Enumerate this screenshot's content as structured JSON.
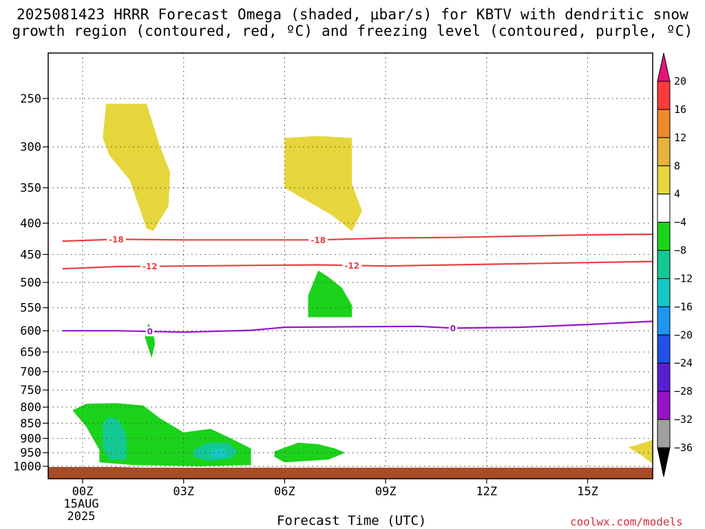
{
  "title_line1": "2025081423 HRRR Forecast Omega (shaded, μbar/s) for KBTV with dendritic snow",
  "title_line2": "growth region (contoured, red, ºC) and freezing level (contoured, purple, ºC)",
  "credit": "coolwx.com/models",
  "chart_data": {
    "type": "heatmap",
    "xlabel": "Forecast Time (UTC)",
    "ylabel": "",
    "x_ticks": [
      {
        "value": 0,
        "label": "00Z",
        "sub": [
          "15AUG",
          "2025"
        ]
      },
      {
        "value": 3,
        "label": "03Z"
      },
      {
        "value": 6,
        "label": "06Z"
      },
      {
        "value": 9,
        "label": "09Z"
      },
      {
        "value": 12,
        "label": "12Z"
      },
      {
        "value": 15,
        "label": "15Z"
      }
    ],
    "xlim": [
      -0.6,
      17
    ],
    "y_ticks": [
      250,
      300,
      350,
      400,
      450,
      500,
      550,
      600,
      650,
      700,
      750,
      800,
      850,
      900,
      950,
      1000
    ],
    "y_scale": "log",
    "ylim": [
      1040,
      208
    ],
    "grid": true,
    "colorbar": {
      "labels": [
        "20",
        "16",
        "12",
        "8",
        "4",
        "−4",
        "−8",
        "−12",
        "−16",
        "−20",
        "−24",
        "−28",
        "−32",
        "−36"
      ],
      "colors": [
        "#ff3a3a",
        "#f08a28",
        "#e6b43a",
        "#e6d63c",
        "#ffffff",
        "#1ad31a",
        "#14c896",
        "#14c8c8",
        "#1e96f0",
        "#2050e6",
        "#5a1ed2",
        "#9614c8",
        "#a0a0a0"
      ],
      "top_arrow_color": "#e6147a",
      "bottom_arrow_color": "#000000"
    },
    "omega_regions": [
      {
        "color": "#e6d63c",
        "points": [
          [
            0.9,
            255
          ],
          [
            1.9,
            255
          ],
          [
            2.3,
            300
          ],
          [
            2.6,
            330
          ],
          [
            2.55,
            375
          ],
          [
            2.1,
            412
          ],
          [
            1.9,
            408
          ],
          [
            1.4,
            340
          ],
          [
            0.8,
            310
          ],
          [
            0.6,
            290
          ],
          [
            0.7,
            255
          ]
        ]
      },
      {
        "color": "#e6d63c",
        "points": [
          [
            6.0,
            290
          ],
          [
            7.0,
            288
          ],
          [
            8.0,
            290
          ],
          [
            8.0,
            345
          ],
          [
            8.3,
            382
          ],
          [
            8.0,
            412
          ],
          [
            7.4,
            388
          ],
          [
            6.0,
            350
          ]
        ]
      },
      {
        "color": "#e6d63c",
        "points": [
          [
            16.4,
            925
          ],
          [
            17.0,
            905
          ],
          [
            17.0,
            990
          ],
          [
            16.6,
            960
          ],
          [
            16.2,
            930
          ]
        ]
      },
      {
        "color": "#1ad31a",
        "points": [
          [
            6.7,
            525
          ],
          [
            7.0,
            478
          ],
          [
            7.3,
            490
          ],
          [
            7.7,
            510
          ],
          [
            8.0,
            545
          ],
          [
            8.0,
            570
          ],
          [
            6.7,
            570
          ]
        ]
      },
      {
        "color": "#1ad31a",
        "points": [
          [
            1.95,
            583
          ],
          [
            2.1,
            605
          ],
          [
            2.15,
            630
          ],
          [
            2.05,
            665
          ],
          [
            1.95,
            640
          ],
          [
            1.85,
            615
          ]
        ]
      },
      {
        "color": "#1ad31a",
        "points": [
          [
            -0.3,
            810
          ],
          [
            0.1,
            790
          ],
          [
            1.0,
            788
          ],
          [
            1.8,
            795
          ],
          [
            2.3,
            835
          ],
          [
            3.0,
            880
          ],
          [
            3.8,
            868
          ],
          [
            4.4,
            900
          ],
          [
            5.0,
            935
          ],
          [
            5.0,
            995
          ],
          [
            3.5,
            1000
          ],
          [
            1.5,
            995
          ],
          [
            0.5,
            985
          ],
          [
            0.5,
            940
          ],
          [
            0.1,
            860
          ]
        ]
      },
      {
        "color": "#1ad31a",
        "points": [
          [
            5.7,
            945
          ],
          [
            6.4,
            915
          ],
          [
            7.0,
            920
          ],
          [
            7.5,
            935
          ],
          [
            7.8,
            950
          ],
          [
            7.3,
            975
          ],
          [
            6.0,
            985
          ],
          [
            5.7,
            965
          ]
        ]
      },
      {
        "color": "#14c896",
        "points": [
          [
            0.6,
            848
          ],
          [
            0.8,
            830
          ],
          [
            1.1,
            842
          ],
          [
            1.3,
            890
          ],
          [
            1.3,
            975
          ],
          [
            0.8,
            975
          ],
          [
            0.6,
            930
          ]
        ]
      },
      {
        "color": "#14c896",
        "points": [
          [
            3.3,
            940
          ],
          [
            3.7,
            915
          ],
          [
            4.3,
            915
          ],
          [
            4.6,
            945
          ],
          [
            4.4,
            970
          ],
          [
            3.8,
            980
          ],
          [
            3.3,
            965
          ]
        ]
      },
      {
        "color": "#14c8c8",
        "points": [
          [
            3.85,
            940
          ],
          [
            4.2,
            935
          ],
          [
            4.3,
            955
          ],
          [
            4.05,
            972
          ],
          [
            3.8,
            960
          ]
        ]
      }
    ],
    "contours": [
      {
        "value": -18,
        "label": "-18",
        "color": "#e84040",
        "label_x": [
          1.0,
          7.0
        ],
        "points": [
          [
            -0.6,
            428
          ],
          [
            1.0,
            425
          ],
          [
            3.0,
            426
          ],
          [
            5.0,
            426
          ],
          [
            7.0,
            426
          ],
          [
            9.0,
            423
          ],
          [
            11.0,
            422
          ],
          [
            13.0,
            420
          ],
          [
            15.0,
            418
          ],
          [
            17.0,
            417
          ]
        ]
      },
      {
        "value": -12,
        "label": "-12",
        "color": "#e84040",
        "label_x": [
          2.0,
          8.0
        ],
        "points": [
          [
            -0.6,
            475
          ],
          [
            1.0,
            471
          ],
          [
            3.0,
            470
          ],
          [
            5.0,
            469
          ],
          [
            7.0,
            468
          ],
          [
            9.0,
            470
          ],
          [
            11.0,
            468
          ],
          [
            13.0,
            466
          ],
          [
            15.0,
            464
          ],
          [
            17.0,
            462
          ]
        ]
      },
      {
        "value": 0,
        "label": "0",
        "color": "#9614c8",
        "label_x": [
          2.0,
          11.0
        ],
        "points": [
          [
            -0.6,
            600
          ],
          [
            1.0,
            600
          ],
          [
            3.0,
            603
          ],
          [
            5.0,
            599
          ],
          [
            6.0,
            592
          ],
          [
            8.0,
            591
          ],
          [
            10.0,
            590
          ],
          [
            11.0,
            594
          ],
          [
            13.0,
            592
          ],
          [
            15.0,
            586
          ],
          [
            17.0,
            579
          ]
        ]
      }
    ],
    "terrain_color": "#a64d28"
  }
}
